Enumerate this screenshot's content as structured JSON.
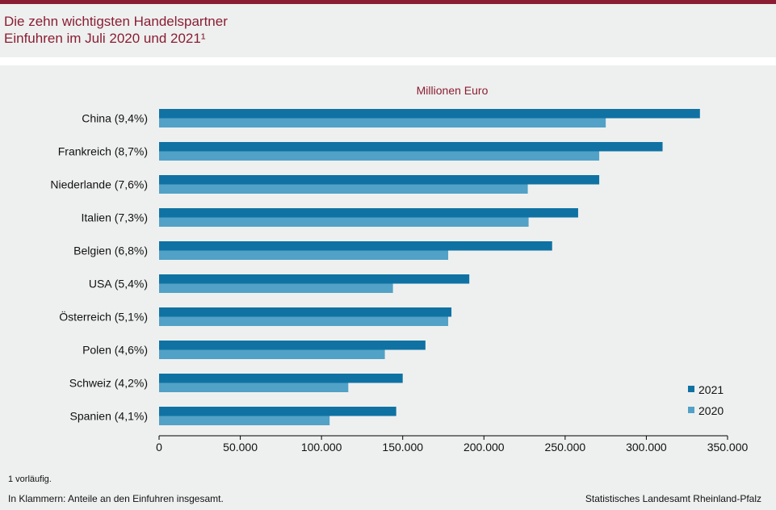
{
  "header": {
    "title_line1": "Die zehn wichtigsten Handelspartner",
    "title_line2": "Einfuhren im Juli 2020 und 2021¹"
  },
  "colors": {
    "accent": "#8b1d33",
    "series_2021": "#0f72a3",
    "series_2020": "#52a1c6"
  },
  "chart_data": {
    "type": "bar",
    "orientation": "horizontal",
    "unit_label": "Millionen  Euro",
    "categories": [
      "China (9,4%)",
      "Frankreich (8,7%)",
      "Niederlande (7,6%)",
      "Italien (7,3%)",
      "Belgien (6,8%)",
      "USA (5,4%)",
      "Österreich (5,1%)",
      "Polen (4,6%)",
      "Schweiz (4,2%)",
      "Spanien (4,1%)"
    ],
    "series": [
      {
        "name": "2021",
        "values": [
          333000,
          310000,
          271000,
          258000,
          242000,
          191000,
          180000,
          164000,
          150000,
          146000
        ]
      },
      {
        "name": "2020",
        "values": [
          275000,
          271000,
          227000,
          227500,
          178000,
          144000,
          178000,
          139000,
          116500,
          105000
        ]
      }
    ],
    "xlim": [
      0,
      350000
    ],
    "ticks": [
      "0",
      "50.000",
      "100.000",
      "150.000",
      "200.000",
      "250.000",
      "300.000",
      "350.000"
    ],
    "legend_position": "bottom-right",
    "grid": false
  },
  "footer": {
    "footnote": "1 vorläufig.",
    "note": "In Klammern: Anteile an den Einfuhren  insgesamt.",
    "source": "Statistisches Landesamt  Rheinland-Pfalz"
  }
}
